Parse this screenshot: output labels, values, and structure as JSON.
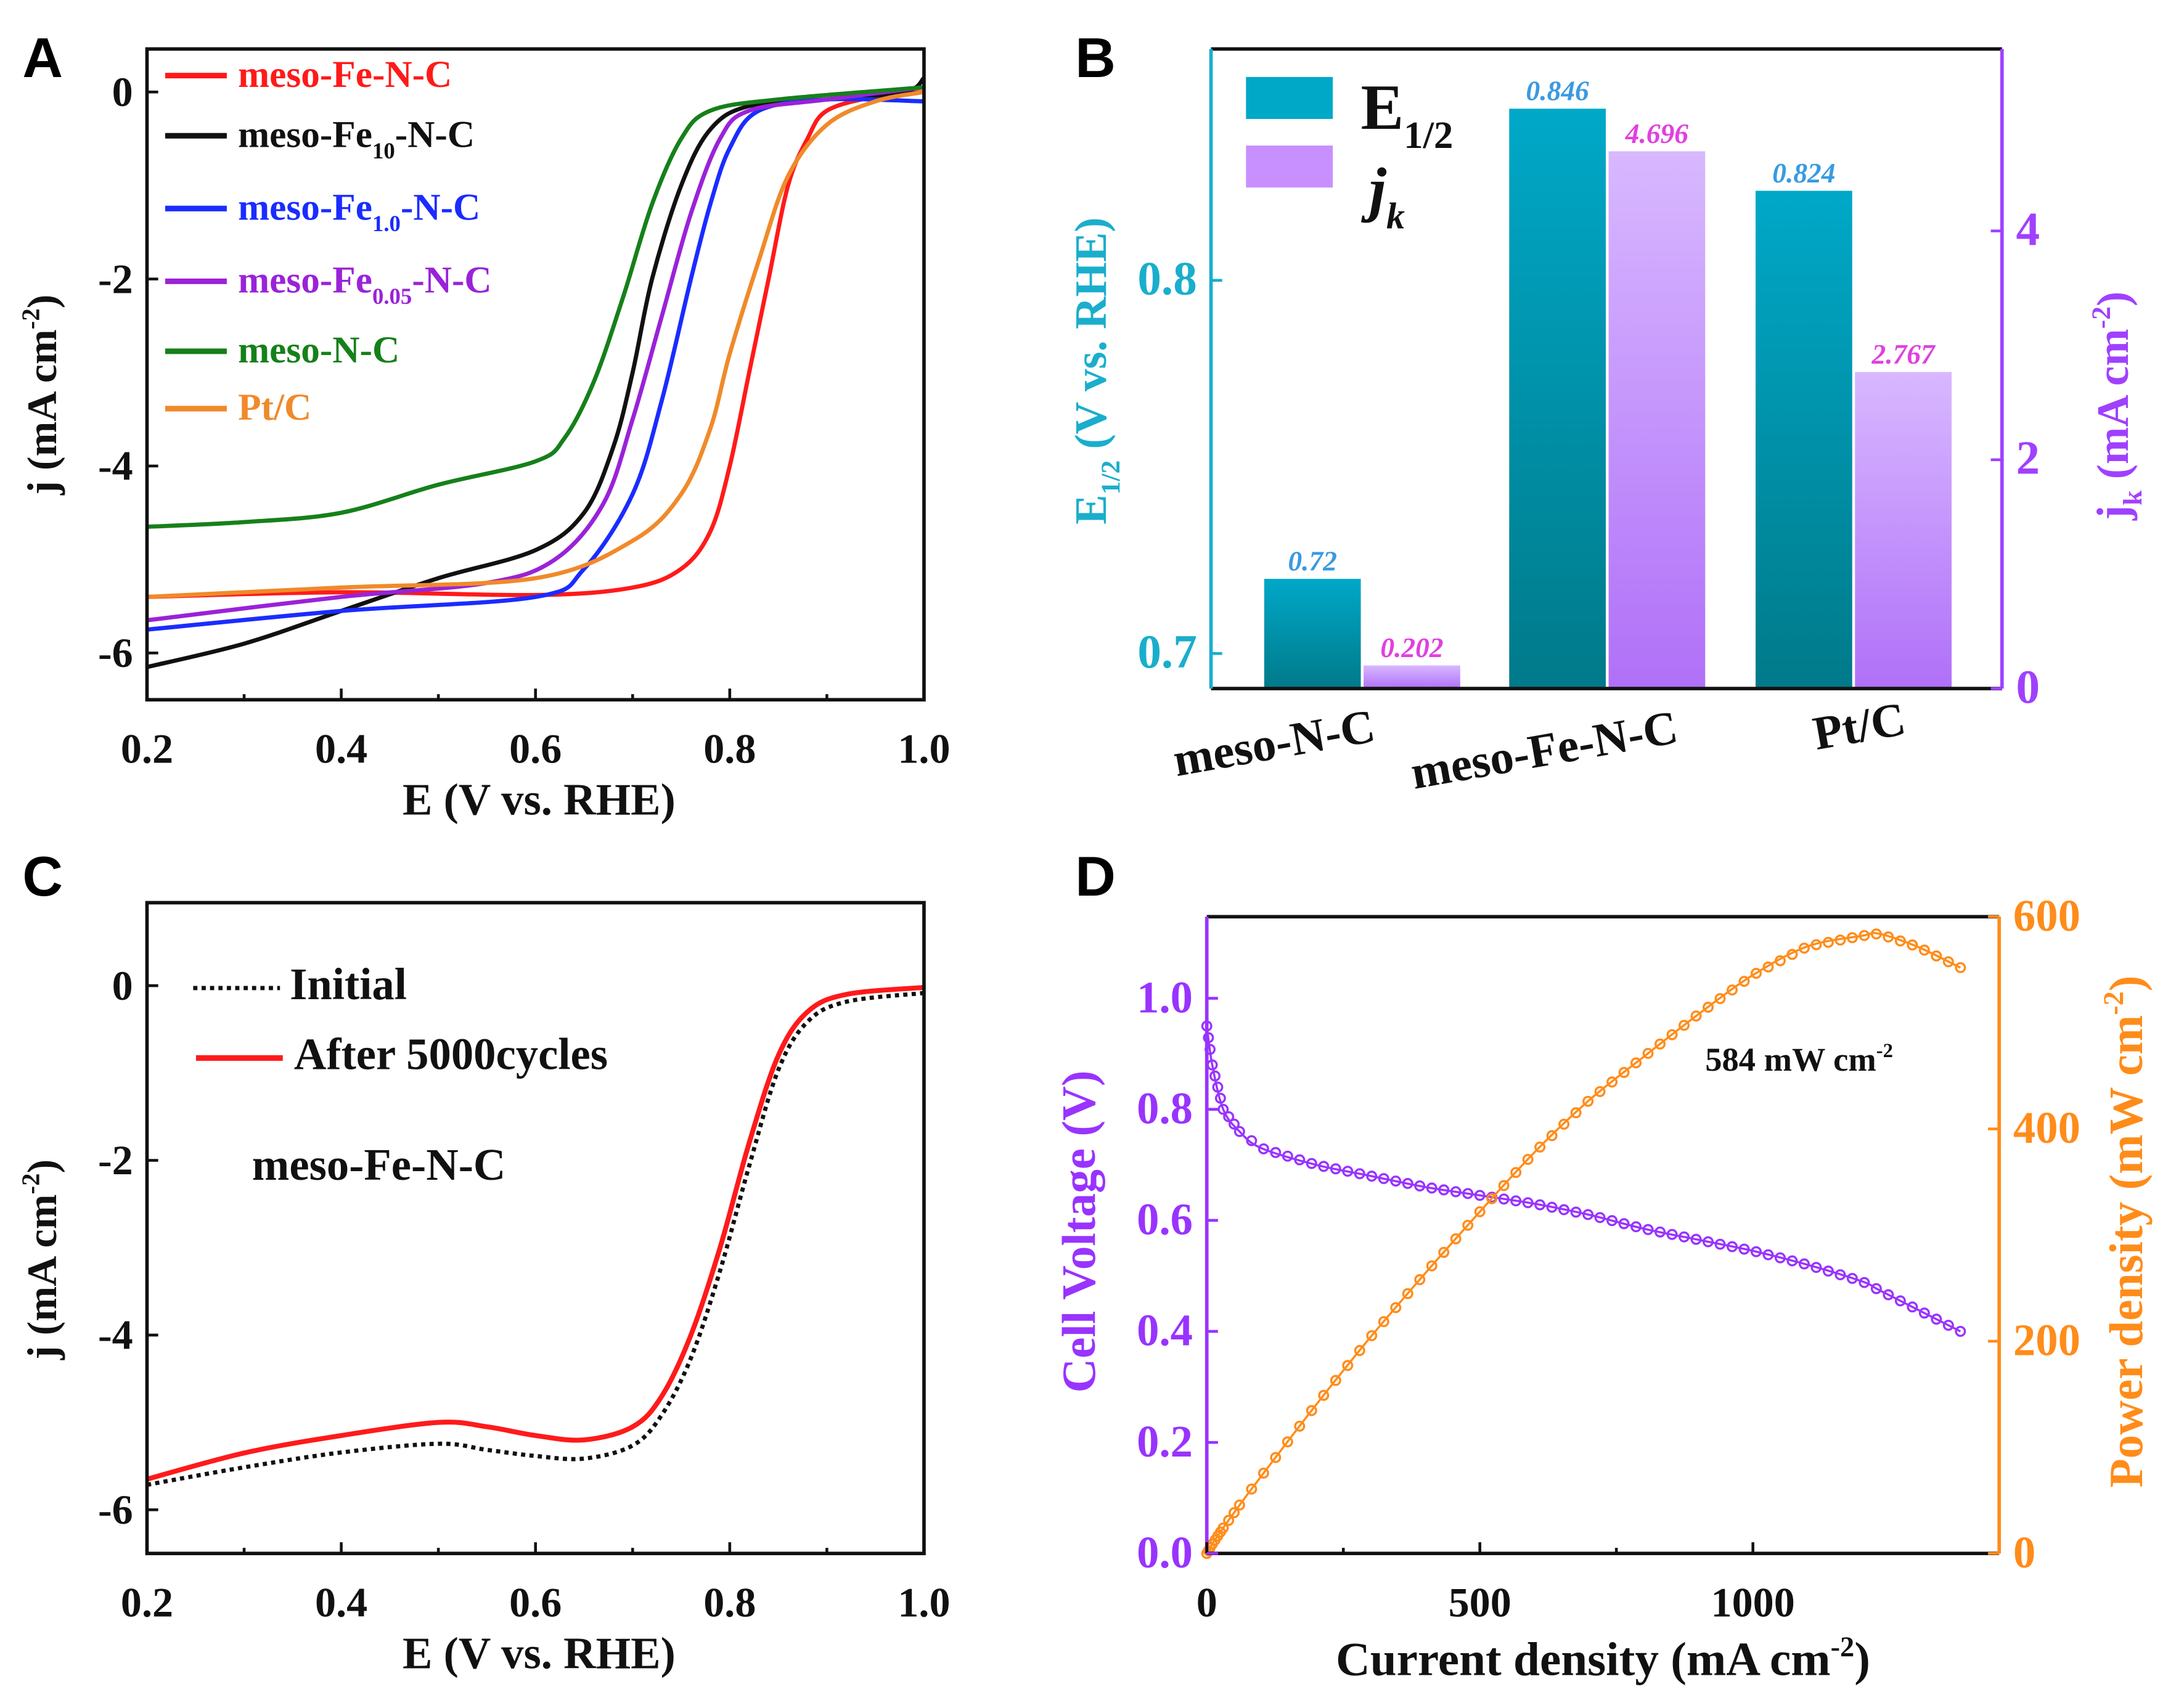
{
  "panel_labels": [
    "A",
    "B",
    "C",
    "D"
  ],
  "chart_data": [
    {
      "panel": "A",
      "type": "line",
      "xlabel": [
        {
          "t": "E (V vs. RHE)"
        }
      ],
      "ylabel": [
        {
          "t": "j (mA cm"
        },
        {
          "t": "-2",
          "sup": true
        },
        {
          "t": ")"
        }
      ],
      "xlim": [
        0.2,
        1.0
      ],
      "ylim": [
        -6.5,
        0.46
      ],
      "xticks": [
        0.2,
        0.4,
        0.6,
        0.8,
        1.0
      ],
      "xtick_labels": [
        "0.2",
        "0.4",
        "0.6",
        "0.8",
        "1.0"
      ],
      "yticks": [
        0,
        -2,
        -4,
        -6
      ],
      "ytick_labels": [
        "0",
        "-2",
        "-4",
        "-6"
      ],
      "legend_position": "top-left",
      "series": [
        {
          "name": [
            {
              "t": "meso-Fe-N-C"
            }
          ],
          "color": "#ff1a1a",
          "points": [
            [
              0.2,
              -5.4
            ],
            [
              0.4,
              -5.35
            ],
            [
              0.6,
              -5.38
            ],
            [
              0.7,
              -5.3
            ],
            [
              0.75,
              -5.1
            ],
            [
              0.78,
              -4.7
            ],
            [
              0.8,
              -4.0
            ],
            [
              0.82,
              -3.0
            ],
            [
              0.84,
              -2.0
            ],
            [
              0.86,
              -1.0
            ],
            [
              0.88,
              -0.5
            ],
            [
              0.9,
              -0.2
            ],
            [
              0.95,
              -0.05
            ],
            [
              1.0,
              0.0
            ]
          ]
        },
        {
          "name": [
            {
              "t": "meso-Fe"
            },
            {
              "t": "10",
              "sub": true
            },
            {
              "t": "-N-C"
            }
          ],
          "color": "#111111",
          "points": [
            [
              0.2,
              -6.15
            ],
            [
              0.3,
              -5.9
            ],
            [
              0.4,
              -5.55
            ],
            [
              0.5,
              -5.2
            ],
            [
              0.6,
              -4.9
            ],
            [
              0.65,
              -4.5
            ],
            [
              0.68,
              -3.8
            ],
            [
              0.7,
              -3.0
            ],
            [
              0.72,
              -2.0
            ],
            [
              0.75,
              -1.0
            ],
            [
              0.78,
              -0.4
            ],
            [
              0.82,
              -0.15
            ],
            [
              0.9,
              -0.08
            ],
            [
              0.98,
              0.0
            ],
            [
              1.0,
              0.15
            ]
          ]
        },
        {
          "name": [
            {
              "t": "meso-Fe"
            },
            {
              "t": "1.0",
              "sub": true
            },
            {
              "t": "-N-C"
            }
          ],
          "color": "#1a2cff",
          "points": [
            [
              0.2,
              -5.75
            ],
            [
              0.4,
              -5.55
            ],
            [
              0.6,
              -5.4
            ],
            [
              0.65,
              -5.1
            ],
            [
              0.7,
              -4.3
            ],
            [
              0.73,
              -3.3
            ],
            [
              0.76,
              -2.0
            ],
            [
              0.78,
              -1.2
            ],
            [
              0.8,
              -0.6
            ],
            [
              0.83,
              -0.2
            ],
            [
              0.9,
              -0.08
            ],
            [
              1.0,
              -0.1
            ]
          ]
        },
        {
          "name": [
            {
              "t": "meso-Fe"
            },
            {
              "t": "0.05",
              "sub": true
            },
            {
              "t": "-N-C"
            }
          ],
          "color": "#9a22d8",
          "points": [
            [
              0.2,
              -5.65
            ],
            [
              0.4,
              -5.4
            ],
            [
              0.55,
              -5.25
            ],
            [
              0.62,
              -5.0
            ],
            [
              0.67,
              -4.4
            ],
            [
              0.7,
              -3.5
            ],
            [
              0.73,
              -2.4
            ],
            [
              0.76,
              -1.3
            ],
            [
              0.79,
              -0.5
            ],
            [
              0.82,
              -0.2
            ],
            [
              0.9,
              -0.08
            ],
            [
              1.0,
              0.05
            ]
          ]
        },
        {
          "name": [
            {
              "t": "meso-N-C"
            }
          ],
          "color": "#16801a",
          "points": [
            [
              0.2,
              -4.65
            ],
            [
              0.3,
              -4.6
            ],
            [
              0.4,
              -4.5
            ],
            [
              0.5,
              -4.2
            ],
            [
              0.6,
              -3.95
            ],
            [
              0.63,
              -3.7
            ],
            [
              0.66,
              -3.1
            ],
            [
              0.69,
              -2.2
            ],
            [
              0.72,
              -1.2
            ],
            [
              0.75,
              -0.5
            ],
            [
              0.78,
              -0.2
            ],
            [
              0.85,
              -0.08
            ],
            [
              1.0,
              0.05
            ]
          ]
        },
        {
          "name": [
            {
              "t": "Pt/C"
            }
          ],
          "color": "#f08a2a",
          "points": [
            [
              0.2,
              -5.4
            ],
            [
              0.4,
              -5.3
            ],
            [
              0.6,
              -5.2
            ],
            [
              0.7,
              -4.8
            ],
            [
              0.75,
              -4.3
            ],
            [
              0.78,
              -3.6
            ],
            [
              0.8,
              -2.8
            ],
            [
              0.83,
              -1.8
            ],
            [
              0.86,
              -0.9
            ],
            [
              0.9,
              -0.35
            ],
            [
              0.95,
              -0.1
            ],
            [
              1.0,
              0.0
            ]
          ]
        }
      ]
    },
    {
      "panel": "B",
      "type": "bar",
      "categories": [
        "meso-N-C",
        "meso-Fe-N-C",
        "Pt/C"
      ],
      "ylabel_left": [
        {
          "t": "E"
        },
        {
          "t": "1/2",
          "sub": true
        },
        {
          "t": " (V vs.  RHE)"
        }
      ],
      "ylabel_right": [
        {
          "t": "j"
        },
        {
          "t": "k",
          "sub": true
        },
        {
          "t": " (mA cm"
        },
        {
          "t": "-2",
          "sup": true
        },
        {
          "t": ")"
        }
      ],
      "ylim_left": [
        0.6906,
        0.862
      ],
      "ylim_right": [
        0,
        5.59
      ],
      "yticks_left": [
        0.7,
        0.8
      ],
      "ytick_labels_left": [
        "0.7",
        "0.8"
      ],
      "yticks_right": [
        0,
        2,
        4
      ],
      "ytick_labels_right": [
        "0",
        "2",
        "4"
      ],
      "legend_position": "top-left",
      "series": [
        {
          "name": [
            {
              "t": "E"
            },
            {
              "t": "1/2",
              "sub": true
            }
          ],
          "axis": "left",
          "color": "#00a8c8",
          "color_bottom": "#007a8a",
          "label_color": "#3a9ae0",
          "values": [
            0.72,
            0.846,
            0.824
          ],
          "data_labels": [
            "0.72",
            "0.846",
            "0.824"
          ]
        },
        {
          "name": [
            {
              "t": "j"
            },
            {
              "t": "k",
              "sub": true
            }
          ],
          "axis": "right",
          "color": "#d8b8ff",
          "color_bottom": "#b070f8",
          "label_color": "#e040e0",
          "values": [
            0.202,
            4.696,
            2.767
          ],
          "data_labels": [
            "0.202",
            "4.696",
            "2.767"
          ]
        }
      ],
      "left_axis_color": "#1aaecc",
      "right_axis_color": "#a040ff"
    },
    {
      "panel": "C",
      "type": "line",
      "xlabel": [
        {
          "t": "E (V vs. RHE)"
        }
      ],
      "ylabel": [
        {
          "t": "j (mA cm"
        },
        {
          "t": "-2",
          "sup": true
        },
        {
          "t": ")"
        }
      ],
      "xlim": [
        0.2,
        1.0
      ],
      "ylim": [
        -6.5,
        0.95
      ],
      "xticks": [
        0.2,
        0.4,
        0.6,
        0.8,
        1.0
      ],
      "xtick_labels": [
        "0.2",
        "0.4",
        "0.6",
        "0.8",
        "1.0"
      ],
      "yticks": [
        0,
        -2,
        -4,
        -6
      ],
      "ytick_labels": [
        "0",
        "-2",
        "-4",
        "-6"
      ],
      "annotation": "meso-Fe-N-C",
      "legend_position": "top-left",
      "series": [
        {
          "name": [
            {
              "t": "Initial"
            }
          ],
          "color": "#111111",
          "style": "dotted",
          "points": [
            [
              0.2,
              -5.65
            ],
            [
              0.3,
              -5.45
            ],
            [
              0.4,
              -5.28
            ],
            [
              0.5,
              -5.18
            ],
            [
              0.55,
              -5.25
            ],
            [
              0.6,
              -5.32
            ],
            [
              0.65,
              -5.35
            ],
            [
              0.7,
              -5.2
            ],
            [
              0.73,
              -4.85
            ],
            [
              0.76,
              -4.2
            ],
            [
              0.79,
              -3.2
            ],
            [
              0.82,
              -2.0
            ],
            [
              0.85,
              -0.9
            ],
            [
              0.88,
              -0.35
            ],
            [
              0.92,
              -0.12
            ],
            [
              1.0,
              -0.02
            ]
          ]
        },
        {
          "name": [
            {
              "t": "After 5000cycles"
            }
          ],
          "color": "#ff1a1a",
          "style": "solid",
          "points": [
            [
              0.2,
              -5.65
            ],
            [
              0.3,
              -5.35
            ],
            [
              0.4,
              -5.15
            ],
            [
              0.5,
              -5.0
            ],
            [
              0.55,
              -5.05
            ],
            [
              0.6,
              -5.15
            ],
            [
              0.65,
              -5.2
            ],
            [
              0.7,
              -5.05
            ],
            [
              0.73,
              -4.7
            ],
            [
              0.76,
              -4.0
            ],
            [
              0.79,
              -3.0
            ],
            [
              0.82,
              -1.8
            ],
            [
              0.85,
              -0.8
            ],
            [
              0.88,
              -0.3
            ],
            [
              0.92,
              -0.1
            ],
            [
              1.0,
              -0.02
            ]
          ]
        }
      ]
    },
    {
      "panel": "D",
      "type": "line",
      "xlabel": [
        {
          "t": "Current density (mA cm"
        },
        {
          "t": "-2",
          "sup": true
        },
        {
          "t": ")"
        }
      ],
      "ylabel_left": [
        {
          "t": "Cell Voltage (V)"
        }
      ],
      "ylabel_right": [
        {
          "t": "Power density (mW cm"
        },
        {
          "t": "-2",
          "sup": true
        },
        {
          "t": ")"
        }
      ],
      "xlim": [
        0,
        1451
      ],
      "ylim_left": [
        0,
        1.147
      ],
      "ylim_right": [
        0,
        600
      ],
      "xticks": [
        0,
        500,
        1000
      ],
      "xtick_labels": [
        "0",
        "500",
        "1000"
      ],
      "yticks_left": [
        0.0,
        0.2,
        0.4,
        0.6,
        0.8,
        1.0
      ],
      "ytick_labels_left": [
        "0.0",
        "0.2",
        "0.4",
        "0.6",
        "0.8",
        "1.0"
      ],
      "yticks_right": [
        0,
        200,
        400,
        600
      ],
      "ytick_labels_right": [
        "0",
        "200",
        "400",
        "600"
      ],
      "annotation": [
        {
          "t": "584 mW cm"
        },
        {
          "t": "-2",
          "sup": true
        }
      ],
      "left_axis_color": "#9933ff",
      "right_axis_color": "#ff8c1a",
      "series": [
        {
          "axis": "left",
          "color": "#9933ff",
          "marker": "circle",
          "points": [
            [
              0,
              0.95
            ],
            [
              10,
              0.88
            ],
            [
              30,
              0.8
            ],
            [
              60,
              0.76
            ],
            [
              100,
              0.73
            ],
            [
              200,
              0.7
            ],
            [
              300,
              0.68
            ],
            [
              400,
              0.66
            ],
            [
              500,
              0.645
            ],
            [
              600,
              0.63
            ],
            [
              700,
              0.61
            ],
            [
              800,
              0.585
            ],
            [
              900,
              0.565
            ],
            [
              1000,
              0.545
            ],
            [
              1100,
              0.52
            ],
            [
              1200,
              0.49
            ],
            [
              1230,
              0.475
            ],
            [
              1300,
              0.44
            ],
            [
              1380,
              0.4
            ]
          ]
        },
        {
          "axis": "right",
          "color": "#ff8c1a",
          "marker": "circle",
          "points": [
            [
              0,
              0
            ],
            [
              10,
              8.8
            ],
            [
              30,
              24
            ],
            [
              60,
              45.6
            ],
            [
              100,
              73
            ],
            [
              200,
              140
            ],
            [
              300,
              204
            ],
            [
              400,
              264
            ],
            [
              500,
              322
            ],
            [
              600,
              378
            ],
            [
              700,
              427
            ],
            [
              800,
              468
            ],
            [
              900,
              508
            ],
            [
              1000,
              545
            ],
            [
              1100,
              572
            ],
            [
              1200,
              582
            ],
            [
              1230,
              584
            ],
            [
              1300,
              572
            ],
            [
              1380,
              552
            ]
          ]
        }
      ]
    }
  ]
}
